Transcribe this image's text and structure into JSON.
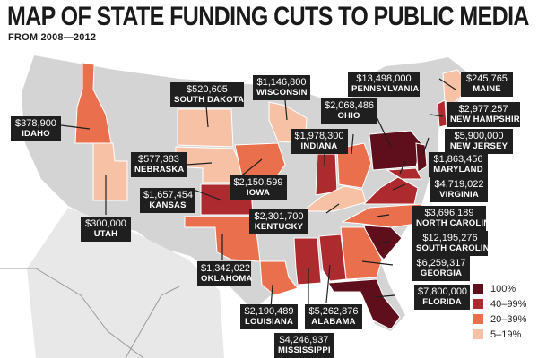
{
  "title": "MAP OF STATE FUNDING CUTS TO PUBLIC MEDIA",
  "subtitle": "FROM 2008—2012",
  "colors": {
    "c100": "#5e0f1b",
    "c40_99": "#ad2a2f",
    "c20_39": "#ea6f4d",
    "c5_19": "#f7c1a5",
    "land": "#d4d4d4",
    "border": "#ffffff",
    "callout_bg": "#1f1f1f"
  },
  "legend": [
    {
      "label": "100%",
      "color": "#5e0f1b"
    },
    {
      "label": "40–99%",
      "color": "#ad2a2f"
    },
    {
      "label": "20–39%",
      "color": "#ea6f4d"
    },
    {
      "label": "5–19%",
      "color": "#f7c1a5"
    }
  ],
  "states": [
    {
      "name": "IDAHO",
      "amount": "$378,900",
      "category": "20-39%"
    },
    {
      "name": "UTAH",
      "amount": "$300,000",
      "category": "5-19%"
    },
    {
      "name": "SOUTH DAKOTA",
      "amount": "$520,605",
      "category": "5-19%"
    },
    {
      "name": "NEBRASKA",
      "amount": "$577,383",
      "category": "5-19%"
    },
    {
      "name": "KANSAS",
      "amount": "$1,657,454",
      "category": "40-99%"
    },
    {
      "name": "OKLAHOMA",
      "amount": "$1,342,022",
      "category": "20-39%"
    },
    {
      "name": "IOWA",
      "amount": "$2,150,599",
      "category": "20-39%"
    },
    {
      "name": "WISCONSIN",
      "amount": "$1,146,800",
      "category": "5-19%"
    },
    {
      "name": "INDIANA",
      "amount": "$1,978,300",
      "category": "40-99%"
    },
    {
      "name": "OHIO",
      "amount": "$2,068,486",
      "category": "20-39%"
    },
    {
      "name": "KENTUCKY",
      "amount": "$2,301,700",
      "category": "5-19%"
    },
    {
      "name": "PENNSYLVANIA",
      "amount": "$13,498,000",
      "category": "100%"
    },
    {
      "name": "MAINE",
      "amount": "$245,765",
      "category": "5-19%"
    },
    {
      "name": "NEW HAMPSHIRE",
      "amount": "$2,977,257",
      "category": "40-99%"
    },
    {
      "name": "NEW JERSEY",
      "amount": "$5,900,000",
      "category": "100%"
    },
    {
      "name": "MARYLAND",
      "amount": "$1,863,456",
      "category": "40-99%"
    },
    {
      "name": "VIRGINIA",
      "amount": "$4,719,022",
      "category": "40-99%"
    },
    {
      "name": "NORTH CAROLINA",
      "amount": "$3,696,189",
      "category": "20-39%"
    },
    {
      "name": "SOUTH CAROLINA",
      "amount": "$12,195,276",
      "category": "100%"
    },
    {
      "name": "GEORGIA",
      "amount": "$6,259,317",
      "category": "20-39%"
    },
    {
      "name": "FLORIDA",
      "amount": "$7,800,000",
      "category": "100%"
    },
    {
      "name": "LOUISIANA",
      "amount": "$2,190,489",
      "category": "20-39%"
    },
    {
      "name": "MISSISSIPPI",
      "amount": "$4,246,937",
      "category": "40-99%"
    },
    {
      "name": "ALABAMA",
      "amount": "$5,262,876",
      "category": "40-99%"
    }
  ]
}
